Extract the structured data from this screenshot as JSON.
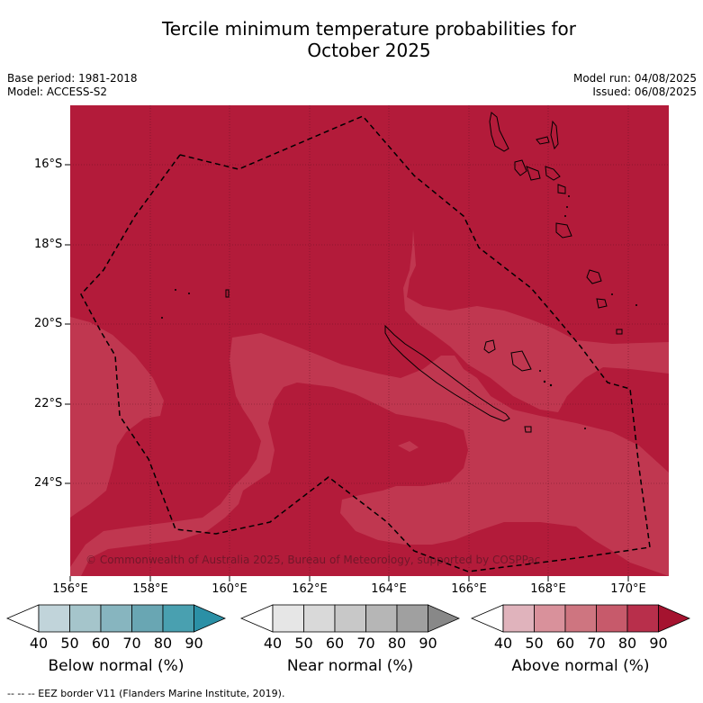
{
  "title_line1": "Tercile minimum temperature probabilities for",
  "title_line2": "October 2025",
  "base_period": "Base period: 1981-2018",
  "model": "Model: ACCESS-S2",
  "model_run": "Model run: 04/08/2025",
  "issued": "Issued: 06/08/2025",
  "map": {
    "lat_labels": [
      "16°S",
      "18°S",
      "20°S",
      "22°S",
      "24°S"
    ],
    "lon_labels": [
      "156°E",
      "158°E",
      "160°E",
      "162°E",
      "164°E",
      "166°E",
      "168°E",
      "170°E"
    ],
    "copyright": "© Commonwealth of Australia 2025, Bureau of Meteorology, supported by COSPPac",
    "colors": {
      "above_80_90": "#b31b3a",
      "above_70_80": "#c43a52"
    }
  },
  "colorbars": [
    {
      "label": "Below normal (%)",
      "ticks": [
        "40",
        "50",
        "60",
        "70",
        "80",
        "90"
      ],
      "colors": [
        "#c1d4da",
        "#a5c5cb",
        "#87b5bf",
        "#69a6b3",
        "#49a0b0",
        "#2b90a6"
      ]
    },
    {
      "label": "Near normal (%)",
      "ticks": [
        "40",
        "50",
        "60",
        "70",
        "80",
        "90"
      ],
      "colors": [
        "#e6e6e6",
        "#d9d9d9",
        "#c8c8c8",
        "#b6b6b6",
        "#a0a0a0",
        "#888888"
      ]
    },
    {
      "label": "Above normal (%)",
      "ticks": [
        "40",
        "50",
        "60",
        "70",
        "80",
        "90"
      ],
      "colors": [
        "#e0b3bc",
        "#d9919b",
        "#ce7580",
        "#c75a6b",
        "#b82f4b",
        "#a5132f"
      ]
    }
  ],
  "footer": "-- -- -- EEZ border V11 (Flanders Marine Institute, 2019)."
}
